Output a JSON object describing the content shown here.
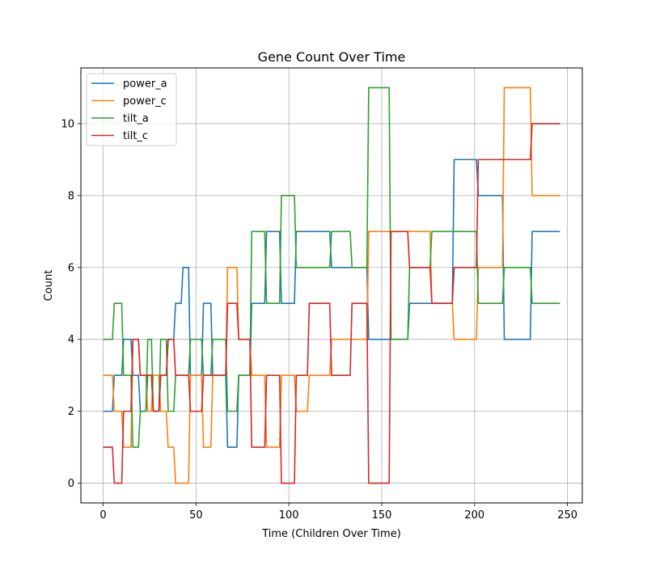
{
  "chart_data": {
    "type": "line",
    "step": "post",
    "title": "Gene Count Over Time",
    "xlabel": "Time (Children Over Time)",
    "ylabel": "Count",
    "xlim": [
      -12,
      258
    ],
    "ylim": [
      -0.55,
      11.55
    ],
    "xticks": [
      0,
      50,
      100,
      150,
      200,
      250
    ],
    "yticks": [
      0,
      2,
      4,
      6,
      8,
      10
    ],
    "grid": true,
    "legend_position": "top-left",
    "series": [
      {
        "name": "power_a",
        "color": "#1f77b4",
        "points": [
          [
            0,
            2
          ],
          [
            5,
            2
          ],
          [
            6,
            3
          ],
          [
            10,
            3
          ],
          [
            11,
            4
          ],
          [
            15,
            4
          ],
          [
            16,
            3
          ],
          [
            19,
            3
          ],
          [
            20,
            2
          ],
          [
            23,
            2
          ],
          [
            24,
            3
          ],
          [
            26,
            3
          ],
          [
            27,
            2
          ],
          [
            30,
            2
          ],
          [
            31,
            3
          ],
          [
            34,
            3
          ],
          [
            35,
            4
          ],
          [
            38,
            4
          ],
          [
            39,
            5
          ],
          [
            42,
            5
          ],
          [
            43,
            6
          ],
          [
            46,
            6
          ],
          [
            47,
            3
          ],
          [
            53,
            3
          ],
          [
            54,
            5
          ],
          [
            58,
            5
          ],
          [
            59,
            3
          ],
          [
            66,
            3
          ],
          [
            67,
            1
          ],
          [
            72,
            1
          ],
          [
            73,
            3
          ],
          [
            79,
            3
          ],
          [
            80,
            5
          ],
          [
            87,
            5
          ],
          [
            88,
            7
          ],
          [
            95,
            7
          ],
          [
            96,
            5
          ],
          [
            103,
            5
          ],
          [
            104,
            7
          ],
          [
            122,
            7
          ],
          [
            123,
            6
          ],
          [
            142,
            6
          ],
          [
            143,
            4
          ],
          [
            164,
            4
          ],
          [
            165,
            5
          ],
          [
            176,
            5
          ],
          [
            177,
            5
          ],
          [
            188,
            5
          ],
          [
            189,
            9
          ],
          [
            201,
            9
          ],
          [
            202,
            8
          ],
          [
            215,
            8
          ],
          [
            216,
            4
          ],
          [
            230,
            4
          ],
          [
            231,
            7
          ],
          [
            246,
            7
          ]
        ]
      },
      {
        "name": "power_c",
        "color": "#ff7f0e",
        "points": [
          [
            0,
            3
          ],
          [
            5,
            3
          ],
          [
            6,
            2
          ],
          [
            10,
            2
          ],
          [
            11,
            1
          ],
          [
            15,
            1
          ],
          [
            16,
            4
          ],
          [
            19,
            4
          ],
          [
            20,
            3
          ],
          [
            23,
            3
          ],
          [
            24,
            2
          ],
          [
            26,
            2
          ],
          [
            27,
            3
          ],
          [
            30,
            3
          ],
          [
            31,
            2
          ],
          [
            34,
            2
          ],
          [
            35,
            1
          ],
          [
            38,
            1
          ],
          [
            39,
            0
          ],
          [
            42,
            0
          ],
          [
            43,
            0
          ],
          [
            46,
            0
          ],
          [
            47,
            3
          ],
          [
            53,
            3
          ],
          [
            54,
            1
          ],
          [
            58,
            1
          ],
          [
            59,
            3
          ],
          [
            66,
            3
          ],
          [
            67,
            6
          ],
          [
            72,
            6
          ],
          [
            73,
            4
          ],
          [
            79,
            4
          ],
          [
            80,
            3
          ],
          [
            87,
            3
          ],
          [
            88,
            1
          ],
          [
            95,
            1
          ],
          [
            96,
            3
          ],
          [
            103,
            3
          ],
          [
            104,
            2
          ],
          [
            110,
            2
          ],
          [
            111,
            3
          ],
          [
            122,
            3
          ],
          [
            123,
            4
          ],
          [
            142,
            4
          ],
          [
            143,
            7
          ],
          [
            164,
            7
          ],
          [
            165,
            7
          ],
          [
            176,
            7
          ],
          [
            177,
            5
          ],
          [
            188,
            5
          ],
          [
            189,
            4
          ],
          [
            201,
            4
          ],
          [
            202,
            6
          ],
          [
            215,
            6
          ],
          [
            216,
            11
          ],
          [
            230,
            11
          ],
          [
            231,
            8
          ],
          [
            246,
            8
          ]
        ]
      },
      {
        "name": "tilt_a",
        "color": "#2ca02c",
        "points": [
          [
            0,
            4
          ],
          [
            5,
            4
          ],
          [
            6,
            5
          ],
          [
            10,
            5
          ],
          [
            11,
            3
          ],
          [
            15,
            3
          ],
          [
            16,
            1
          ],
          [
            19,
            1
          ],
          [
            20,
            2
          ],
          [
            23,
            2
          ],
          [
            24,
            4
          ],
          [
            26,
            4
          ],
          [
            27,
            2
          ],
          [
            30,
            2
          ],
          [
            31,
            4
          ],
          [
            34,
            4
          ],
          [
            35,
            2
          ],
          [
            38,
            2
          ],
          [
            39,
            3
          ],
          [
            42,
            3
          ],
          [
            43,
            3
          ],
          [
            46,
            3
          ],
          [
            47,
            4
          ],
          [
            53,
            4
          ],
          [
            54,
            3
          ],
          [
            58,
            3
          ],
          [
            59,
            4
          ],
          [
            66,
            4
          ],
          [
            67,
            2
          ],
          [
            72,
            2
          ],
          [
            73,
            3
          ],
          [
            79,
            3
          ],
          [
            80,
            7
          ],
          [
            87,
            7
          ],
          [
            88,
            5
          ],
          [
            95,
            5
          ],
          [
            96,
            8
          ],
          [
            103,
            8
          ],
          [
            104,
            6
          ],
          [
            110,
            6
          ],
          [
            111,
            6
          ],
          [
            122,
            6
          ],
          [
            123,
            7
          ],
          [
            133,
            7
          ],
          [
            134,
            6
          ],
          [
            142,
            6
          ],
          [
            143,
            11
          ],
          [
            154,
            11
          ],
          [
            155,
            4
          ],
          [
            164,
            4
          ],
          [
            165,
            6
          ],
          [
            176,
            6
          ],
          [
            177,
            7
          ],
          [
            201,
            7
          ],
          [
            202,
            5
          ],
          [
            215,
            5
          ],
          [
            216,
            6
          ],
          [
            230,
            6
          ],
          [
            231,
            5
          ],
          [
            246,
            5
          ]
        ]
      },
      {
        "name": "tilt_c",
        "color": "#d62728",
        "points": [
          [
            0,
            1
          ],
          [
            5,
            1
          ],
          [
            6,
            0
          ],
          [
            10,
            0
          ],
          [
            11,
            2
          ],
          [
            15,
            2
          ],
          [
            16,
            4
          ],
          [
            19,
            4
          ],
          [
            20,
            3
          ],
          [
            23,
            3
          ],
          [
            24,
            3
          ],
          [
            26,
            3
          ],
          [
            27,
            2
          ],
          [
            30,
            2
          ],
          [
            31,
            3
          ],
          [
            34,
            3
          ],
          [
            35,
            4
          ],
          [
            38,
            4
          ],
          [
            39,
            3
          ],
          [
            42,
            3
          ],
          [
            43,
            3
          ],
          [
            46,
            3
          ],
          [
            47,
            2
          ],
          [
            53,
            2
          ],
          [
            54,
            3
          ],
          [
            58,
            3
          ],
          [
            59,
            3
          ],
          [
            66,
            3
          ],
          [
            67,
            5
          ],
          [
            72,
            5
          ],
          [
            73,
            4
          ],
          [
            79,
            4
          ],
          [
            80,
            1
          ],
          [
            87,
            1
          ],
          [
            88,
            3
          ],
          [
            95,
            3
          ],
          [
            96,
            0
          ],
          [
            103,
            0
          ],
          [
            104,
            3
          ],
          [
            110,
            3
          ],
          [
            111,
            5
          ],
          [
            122,
            5
          ],
          [
            123,
            3
          ],
          [
            133,
            3
          ],
          [
            134,
            5
          ],
          [
            142,
            5
          ],
          [
            143,
            0
          ],
          [
            154,
            0
          ],
          [
            155,
            7
          ],
          [
            164,
            7
          ],
          [
            165,
            6
          ],
          [
            176,
            6
          ],
          [
            177,
            5
          ],
          [
            188,
            5
          ],
          [
            189,
            6
          ],
          [
            201,
            6
          ],
          [
            202,
            9
          ],
          [
            215,
            9
          ],
          [
            216,
            9
          ],
          [
            230,
            9
          ],
          [
            231,
            10
          ],
          [
            246,
            10
          ]
        ]
      }
    ]
  }
}
